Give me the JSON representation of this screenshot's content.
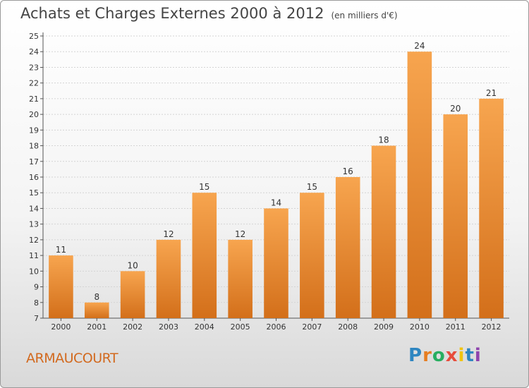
{
  "header": {
    "title": "Achats et Charges Externes 2000 à 2012",
    "subtitle": "(en milliers d'€)"
  },
  "footer": {
    "commune": "ARMAUCOURT",
    "logo": "Proxiti"
  },
  "colors": {
    "bar_light": "#f7a54f",
    "bar_dark": "#d36f1a",
    "commune": "#d2691e",
    "logo_letters": [
      "#2e86c1",
      "#e67e22",
      "#27ae60",
      "#e74c3c",
      "#f1c40f",
      "#2e86c1",
      "#8e44ad"
    ]
  },
  "chart_data": {
    "type": "bar",
    "title": "Achats et Charges Externes 2000 à 2012",
    "subtitle": "(en milliers d'€)",
    "categories": [
      "2000",
      "2001",
      "2002",
      "2003",
      "2004",
      "2005",
      "2006",
      "2007",
      "2008",
      "2009",
      "2010",
      "2011",
      "2012"
    ],
    "values": [
      11,
      8,
      10,
      12,
      15,
      12,
      14,
      15,
      16,
      18,
      24,
      20,
      21
    ],
    "ylim": [
      7,
      25
    ],
    "yticks": [
      7,
      8,
      9,
      10,
      11,
      12,
      13,
      14,
      15,
      16,
      17,
      18,
      19,
      20,
      21,
      22,
      23,
      24,
      25
    ],
    "grid": true,
    "legend": "none"
  }
}
